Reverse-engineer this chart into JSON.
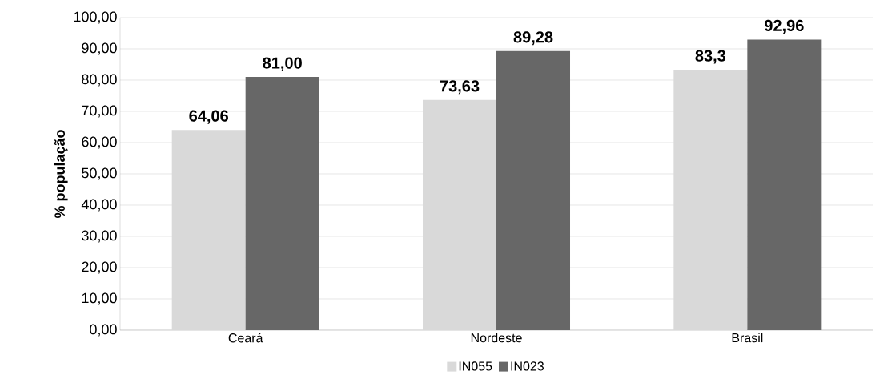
{
  "chart_data": {
    "type": "bar",
    "ylabel": "% população",
    "categories": [
      "Ceará",
      "Nordeste",
      "Brasil"
    ],
    "series": [
      {
        "name": "IN055",
        "color": "#d9d9d9",
        "values": [
          64.06,
          73.63,
          83.3
        ],
        "value_labels": [
          "64,06",
          "73,63",
          "83,3"
        ]
      },
      {
        "name": "IN023",
        "color": "#676767",
        "values": [
          81.0,
          89.28,
          92.96
        ],
        "value_labels": [
          "81,00",
          "89,28",
          "92,96"
        ]
      }
    ],
    "ylim": [
      0,
      100
    ],
    "yticks": [
      {
        "value": 0,
        "label": "0,00"
      },
      {
        "value": 10,
        "label": "10,00"
      },
      {
        "value": 20,
        "label": "20,00"
      },
      {
        "value": 30,
        "label": "30,00"
      },
      {
        "value": 40,
        "label": "40,00"
      },
      {
        "value": 50,
        "label": "50,00"
      },
      {
        "value": 60,
        "label": "60,00"
      },
      {
        "value": 70,
        "label": "70,00"
      },
      {
        "value": 80,
        "label": "80,00"
      },
      {
        "value": 90,
        "label": "90,00"
      },
      {
        "value": 100,
        "label": "100,00"
      }
    ],
    "grid": "y",
    "legend": "bottom"
  }
}
